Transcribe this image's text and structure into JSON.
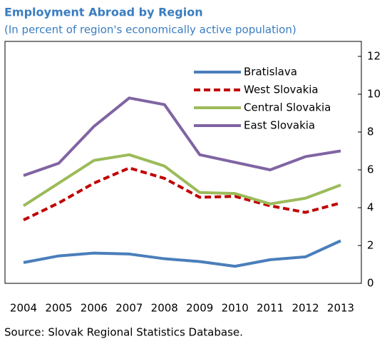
{
  "chart_data": {
    "type": "line",
    "title": "Employment Abroad by Region",
    "subtitle": "(In percent of region's economically active population)",
    "source": "Source: Slovak Regional Statistics Database.",
    "categories": [
      "2004",
      "2005",
      "2006",
      "2007",
      "2008",
      "2009",
      "2010",
      "2011",
      "2012",
      "2013"
    ],
    "series": [
      {
        "name": "Bratislava",
        "color": "#4a7ebb",
        "dashed": false,
        "values": [
          1.1,
          1.45,
          1.6,
          1.55,
          1.3,
          1.15,
          0.9,
          1.25,
          1.4,
          2.25
        ]
      },
      {
        "name": "West Slovakia",
        "color": "#c00000",
        "dashed": true,
        "values": [
          3.35,
          4.25,
          5.3,
          6.1,
          5.55,
          4.55,
          4.6,
          4.1,
          3.75,
          4.25
        ]
      },
      {
        "name": "Central Slovakia",
        "color": "#9bbb59",
        "dashed": false,
        "values": [
          4.1,
          5.3,
          6.5,
          6.8,
          6.2,
          4.8,
          4.75,
          4.2,
          4.5,
          5.2
        ]
      },
      {
        "name": "East Slovakia",
        "color": "#8064a2",
        "dashed": false,
        "values": [
          5.7,
          6.35,
          8.3,
          9.8,
          9.45,
          6.8,
          6.4,
          6.0,
          6.7,
          7.0
        ]
      }
    ],
    "ylim": [
      0,
      12
    ],
    "yticks": [
      0,
      2,
      4,
      6,
      8,
      10,
      12
    ],
    "y_axis_side": "right",
    "legend": "upper right"
  }
}
